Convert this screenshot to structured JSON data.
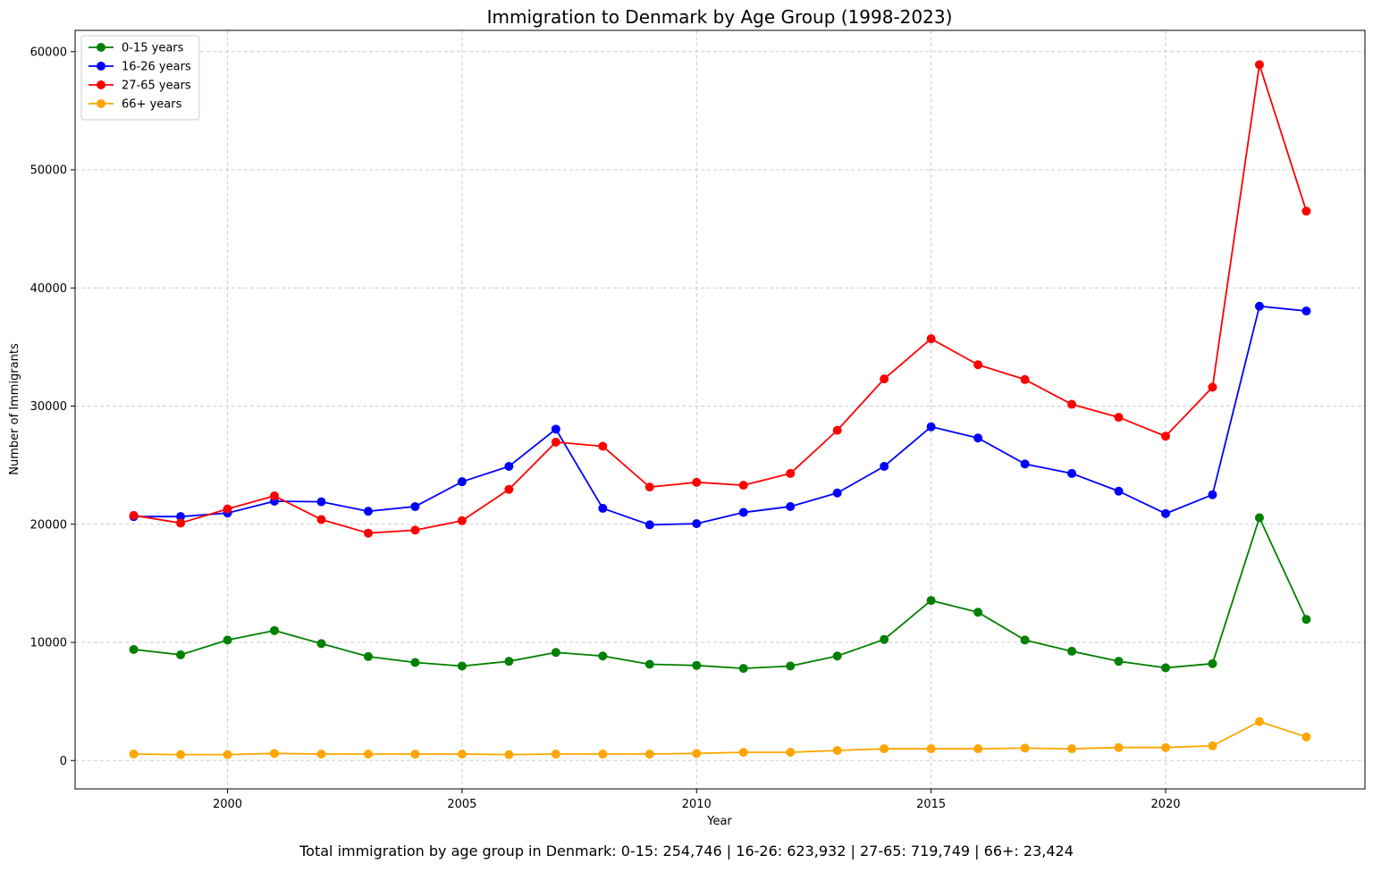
{
  "chart_data": {
    "type": "line",
    "title": "Immigration to Denmark by Age Group (1998-2023)",
    "xlabel": "Year",
    "ylabel": "Number of Immigrants",
    "xlim": [
      1996.75,
      2024.25
    ],
    "ylim": [
      -2400,
      61800
    ],
    "x_ticks": [
      2000,
      2005,
      2010,
      2015,
      2020
    ],
    "y_ticks": [
      0,
      10000,
      20000,
      30000,
      40000,
      50000,
      60000
    ],
    "grid": true,
    "legend_position": "upper-left",
    "x": [
      1998,
      1999,
      2000,
      2001,
      2002,
      2003,
      2004,
      2005,
      2006,
      2007,
      2008,
      2009,
      2010,
      2011,
      2012,
      2013,
      2014,
      2015,
      2016,
      2017,
      2018,
      2019,
      2020,
      2021,
      2022,
      2023
    ],
    "series": [
      {
        "name": "0-15 years",
        "color": "#008000",
        "values": [
          9400,
          8950,
          10200,
          11000,
          9900,
          8800,
          8300,
          8000,
          8400,
          9150,
          8850,
          8150,
          8050,
          7800,
          8000,
          8850,
          10250,
          13550,
          12550,
          10200,
          9250,
          8400,
          7850,
          8200,
          20550,
          11950
        ]
      },
      {
        "name": "16-26 years",
        "color": "#0000ff",
        "values": [
          20650,
          20650,
          20950,
          21950,
          21900,
          21100,
          21500,
          23600,
          24900,
          28050,
          21350,
          19950,
          20050,
          21000,
          21500,
          22650,
          24900,
          28250,
          27300,
          25100,
          24300,
          22800,
          20900,
          22500,
          38450,
          38050
        ]
      },
      {
        "name": "27-65 years",
        "color": "#ff0000",
        "values": [
          20750,
          20100,
          21300,
          22400,
          20400,
          19250,
          19500,
          20300,
          22950,
          26950,
          26600,
          23150,
          23550,
          23300,
          24300,
          27950,
          32300,
          35700,
          33500,
          32250,
          30150,
          29050,
          27450,
          31600,
          58900,
          46500
        ]
      },
      {
        "name": "66+ years",
        "color": "#ffa500",
        "values": [
          550,
          500,
          500,
          600,
          550,
          550,
          550,
          550,
          500,
          550,
          550,
          550,
          600,
          700,
          700,
          850,
          1000,
          1000,
          1000,
          1050,
          1000,
          1100,
          1100,
          1250,
          3300,
          2000
        ]
      }
    ]
  },
  "footnote": "Total immigration by age group in Denmark: 0-15: 254,746 | 16-26: 623,932 | 27-65: 719,749 | 66+: 23,424"
}
